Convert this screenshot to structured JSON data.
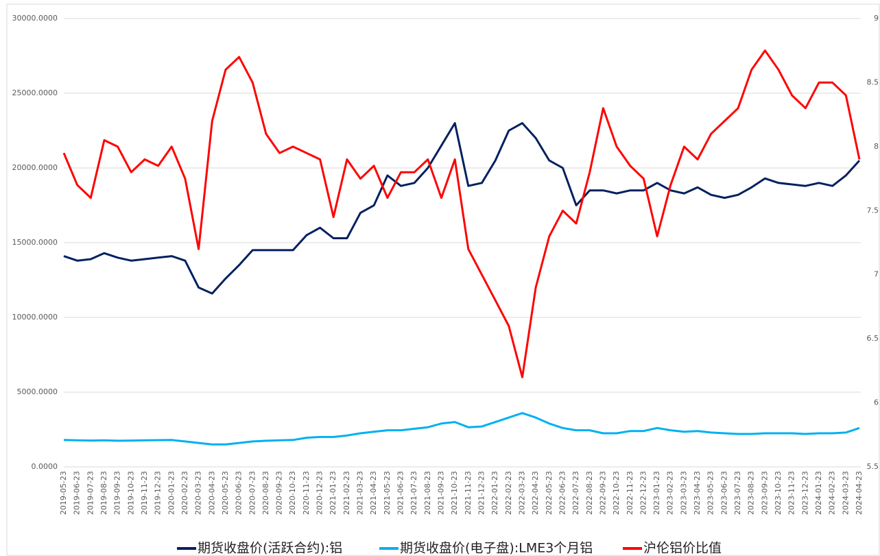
{
  "chart_data": {
    "type": "line",
    "x": [
      "2019-05-23",
      "2019-06-23",
      "2019-07-23",
      "2019-08-23",
      "2019-09-23",
      "2019-10-23",
      "2019-11-23",
      "2019-12-23",
      "2020-01-23",
      "2020-02-23",
      "2020-03-23",
      "2020-04-23",
      "2020-05-23",
      "2020-06-23",
      "2020-07-23",
      "2020-08-23",
      "2020-09-23",
      "2020-10-23",
      "2020-11-23",
      "2020-12-23",
      "2021-01-23",
      "2021-02-23",
      "2021-03-23",
      "2021-04-23",
      "2021-05-23",
      "2021-06-23",
      "2021-07-23",
      "2021-08-23",
      "2021-09-23",
      "2021-10-23",
      "2021-11-23",
      "2021-12-23",
      "2022-01-23",
      "2022-02-23",
      "2022-03-23",
      "2022-04-23",
      "2022-05-23",
      "2022-06-23",
      "2022-07-23",
      "2022-08-23",
      "2022-09-23",
      "2022-10-23",
      "2022-11-23",
      "2022-12-23",
      "2023-01-23",
      "2023-02-23",
      "2023-03-23",
      "2023-04-23",
      "2023-05-23",
      "2023-06-23",
      "2023-07-23",
      "2023-08-23",
      "2023-09-23",
      "2023-10-23",
      "2023-11-23",
      "2023-12-23",
      "2024-01-23",
      "2024-02-23",
      "2024-03-23",
      "2024-04-23"
    ],
    "series": [
      {
        "name": "期货收盘价(活跃合约):铝",
        "color": "#002060",
        "axis": "y",
        "values": [
          14100,
          13800,
          13900,
          14300,
          14000,
          13800,
          13900,
          14000,
          14100,
          13800,
          12000,
          11600,
          12600,
          13500,
          14500,
          14500,
          14500,
          14500,
          15500,
          16000,
          15300,
          15300,
          17000,
          17500,
          19500,
          18800,
          19000,
          20000,
          21500,
          23000,
          18800,
          19000,
          20500,
          22500,
          23000,
          22000,
          20500,
          20000,
          17500,
          18500,
          18500,
          18300,
          18500,
          18500,
          19000,
          18500,
          18300,
          18700,
          18200,
          18000,
          18200,
          18700,
          19300,
          19000,
          18900,
          18800,
          19000,
          18800,
          19500,
          20500
        ]
      },
      {
        "name": "期货收盘价(电子盘):LME3个月铝",
        "color": "#00b0f0",
        "axis": "y",
        "values": [
          1800,
          1780,
          1760,
          1780,
          1750,
          1760,
          1780,
          1790,
          1800,
          1700,
          1600,
          1500,
          1500,
          1600,
          1700,
          1750,
          1780,
          1800,
          1950,
          2000,
          2000,
          2100,
          2250,
          2350,
          2450,
          2450,
          2550,
          2650,
          2900,
          3000,
          2650,
          2700,
          3000,
          3300,
          3600,
          3300,
          2900,
          2600,
          2450,
          2450,
          2250,
          2250,
          2400,
          2400,
          2600,
          2450,
          2350,
          2400,
          2300,
          2250,
          2200,
          2200,
          2250,
          2250,
          2250,
          2200,
          2250,
          2250,
          2300,
          2600
        ]
      },
      {
        "name": "沪伦铝价比值",
        "color": "#ff0000",
        "axis": "y2",
        "values": [
          7.95,
          7.7,
          7.6,
          8.05,
          8.0,
          7.8,
          7.9,
          7.85,
          8.0,
          7.75,
          7.2,
          8.2,
          8.6,
          8.7,
          8.5,
          8.1,
          7.95,
          8.0,
          7.95,
          7.9,
          7.45,
          7.9,
          7.75,
          7.85,
          7.6,
          7.8,
          7.8,
          7.9,
          7.6,
          7.9,
          7.2,
          7.0,
          6.8,
          6.6,
          6.2,
          6.9,
          7.3,
          7.5,
          7.4,
          7.8,
          8.3,
          8.0,
          7.85,
          7.75,
          7.3,
          7.7,
          8.0,
          7.9,
          8.1,
          8.2,
          8.3,
          8.6,
          8.75,
          8.6,
          8.4,
          8.3,
          8.5,
          8.5,
          8.4,
          7.9
        ]
      }
    ],
    "ylim": [
      0,
      30000
    ],
    "yticks": [
      {
        "value": 0,
        "label": "0.0000"
      },
      {
        "value": 5000,
        "label": "5000.0000"
      },
      {
        "value": 10000,
        "label": "10000.0000"
      },
      {
        "value": 15000,
        "label": "15000.0000"
      },
      {
        "value": 20000,
        "label": "20000.0000"
      },
      {
        "value": 25000,
        "label": "25000.0000"
      },
      {
        "value": 30000,
        "label": "30000.0000"
      }
    ],
    "y2lim": [
      5.5,
      9
    ],
    "y2ticks": [
      5.5,
      6,
      6.5,
      7,
      7.5,
      8,
      8.5,
      9
    ],
    "grid": true
  }
}
